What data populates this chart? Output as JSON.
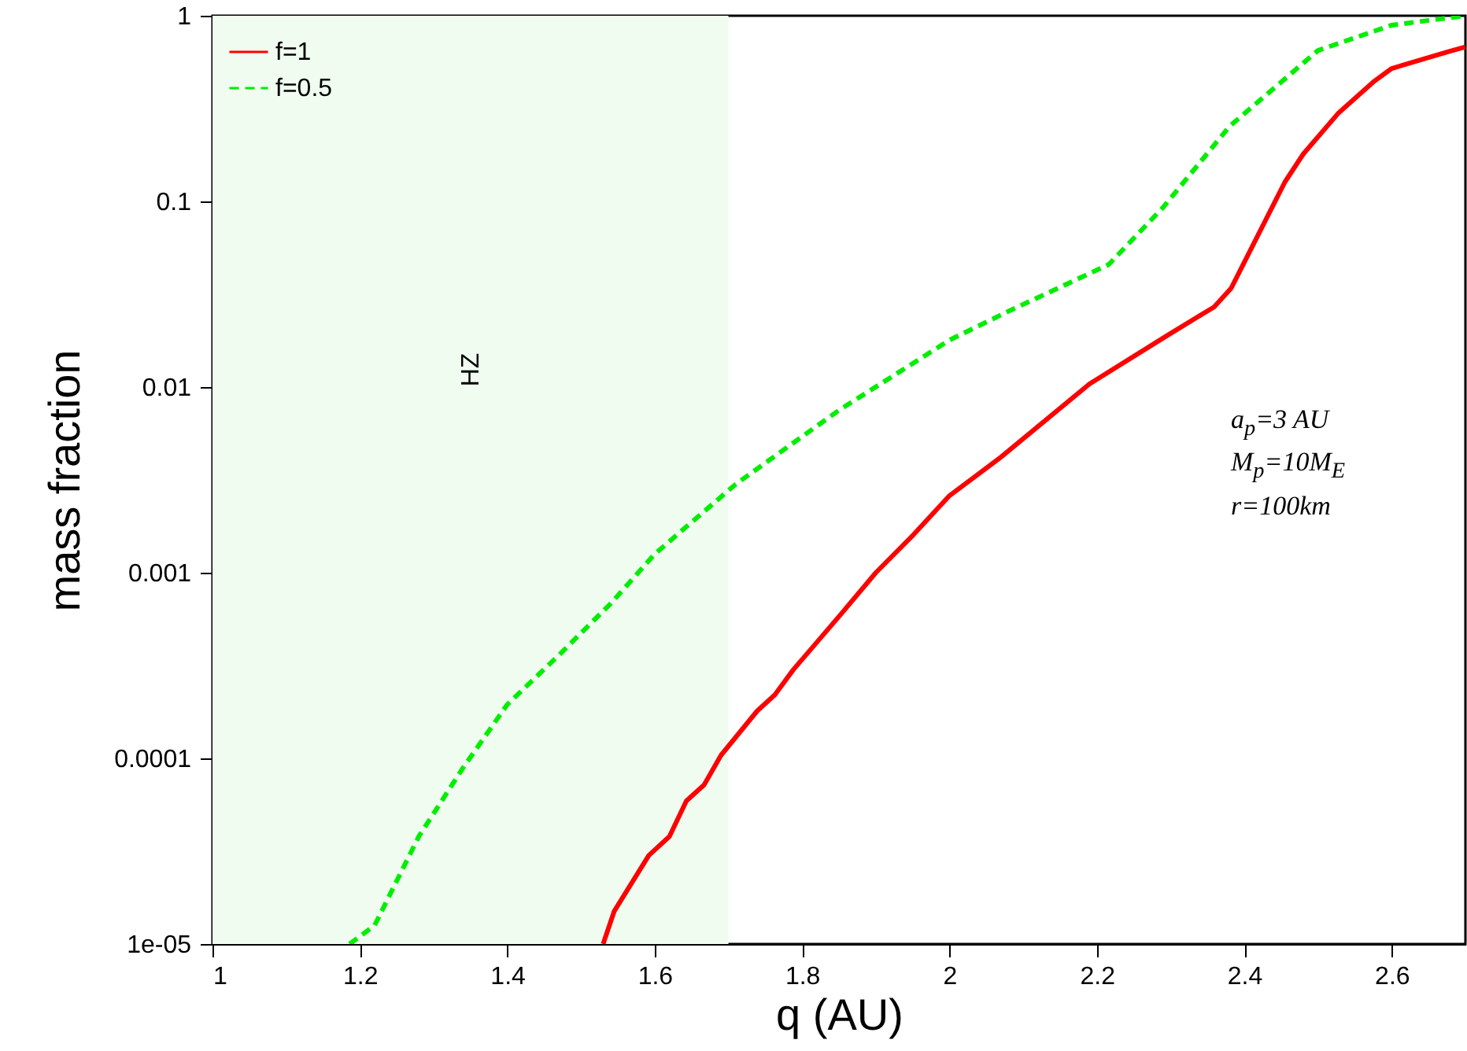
{
  "chart_data": {
    "type": "line",
    "xlabel": "q (AU)",
    "ylabel": "mass fraction",
    "log": "y",
    "grid": false,
    "legend": "top left",
    "xlim": [
      1,
      2.7
    ],
    "xticks": [
      1,
      1.2,
      1.4,
      1.6,
      1.8,
      2,
      2.2,
      2.4,
      2.6
    ],
    "ylim": [
      1e-05,
      1
    ],
    "yticks": [
      {
        "value": 1e-05,
        "label": "1e-05"
      },
      {
        "value": 0.0001,
        "label": "0.0001"
      },
      {
        "value": 0.001,
        "label": "0.001"
      },
      {
        "value": 0.01,
        "label": "0.01"
      },
      {
        "value": 0.1,
        "label": "0.1"
      },
      {
        "value": 1,
        "label": "1"
      }
    ],
    "bands": [
      {
        "axis": "x",
        "from": 1,
        "to": 1.7,
        "label": "HZ",
        "color": "#f0fcf0"
      }
    ],
    "annotations": [
      "a$_{p}$=3 AU",
      "M$_{p}$=10M$_{E}$",
      "r=100km"
    ],
    "series": [
      {
        "name": "f=1",
        "color": "#ff0000",
        "line_style": "solid",
        "x": [
          1.53,
          1.545,
          1.592,
          1.62,
          1.643,
          1.667,
          1.69,
          1.739,
          1.763,
          1.788,
          1.853,
          1.9,
          1.951,
          2.0,
          2.07,
          2.19,
          2.293,
          2.359,
          2.382,
          2.455,
          2.48,
          2.528,
          2.575,
          2.6,
          2.677,
          2.7
        ],
        "values": [
          1e-05,
          1.5e-05,
          3e-05,
          3.8e-05,
          5.9e-05,
          7.2e-05,
          0.000104,
          0.00018,
          0.00022,
          0.0003,
          0.0006,
          0.001,
          0.0016,
          0.0026,
          0.0042,
          0.0104,
          0.0187,
          0.027,
          0.034,
          0.127,
          0.18,
          0.3,
          0.44,
          0.52,
          0.64,
          0.68
        ]
      },
      {
        "name": "f=0.5",
        "color": "#00ee00",
        "line_style": "dashed",
        "x": [
          1.186,
          1.22,
          1.28,
          1.34,
          1.4,
          1.47,
          1.54,
          1.6,
          1.71,
          1.85,
          2.0,
          2.08,
          2.216,
          2.29,
          2.38,
          2.5,
          2.6,
          2.7
        ],
        "values": [
          1e-05,
          1.26e-05,
          3.8e-05,
          8.9e-05,
          0.000195,
          0.00036,
          0.00068,
          0.00126,
          0.003,
          0.0075,
          0.0179,
          0.0256,
          0.0457,
          0.093,
          0.254,
          0.65,
          0.89,
          1
        ]
      }
    ]
  }
}
